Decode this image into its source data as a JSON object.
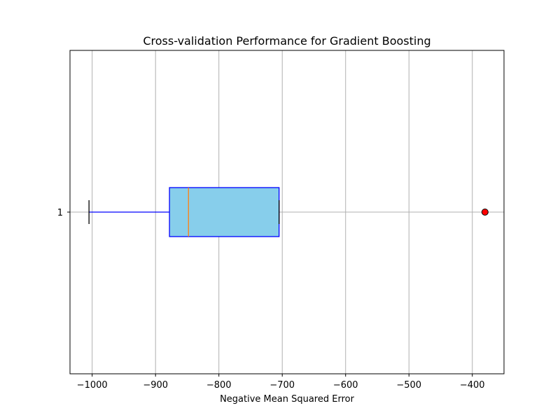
{
  "chart_data": {
    "type": "boxplot",
    "orientation": "horizontal",
    "title": "Cross-validation Performance for Gradient Boosting",
    "xlabel": "Negative Mean Squared Error",
    "ylabel": "",
    "xlim": [
      -1035,
      -350
    ],
    "xticks": [
      -1000,
      -900,
      -800,
      -700,
      -600,
      -500,
      -400
    ],
    "xtick_labels": [
      "−1000",
      "−900",
      "−800",
      "−700",
      "−600",
      "−500",
      "−400"
    ],
    "categories": [
      "1"
    ],
    "grid": true,
    "boxes": [
      {
        "category": "1",
        "whisker_low": -1005,
        "q1": -878,
        "median": -848,
        "q3": -705,
        "whisker_high": -705,
        "outliers": [
          -380
        ]
      }
    ],
    "colors": {
      "box_fill": "#87ceeb",
      "box_edge": "#0000ff",
      "median": "#ff7f0e",
      "whisker": "#0000ff",
      "cap": "#000000",
      "outlier_fill": "#ff0000",
      "outlier_edge": "#000000",
      "grid": "#b0b0b0"
    }
  }
}
